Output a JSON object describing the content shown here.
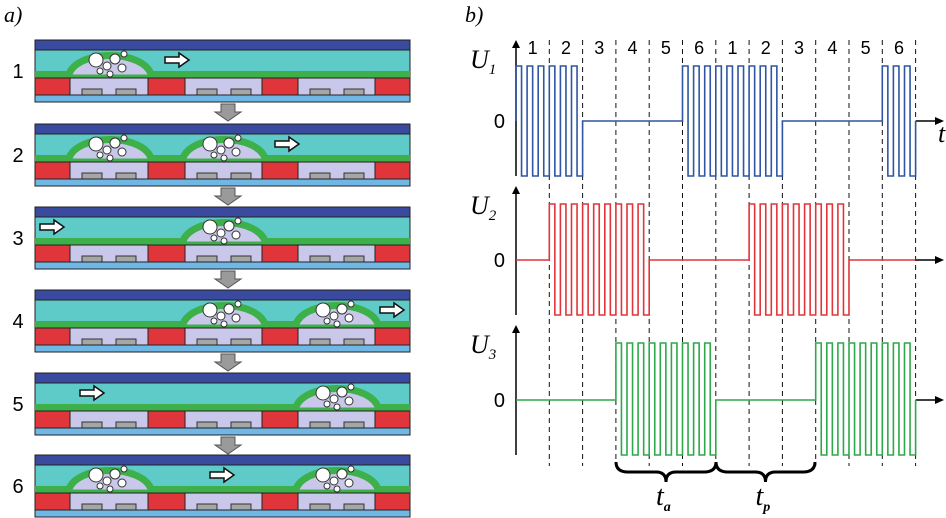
{
  "panel_a": {
    "label": "a)",
    "steps": [
      "1",
      "2",
      "3",
      "4",
      "5",
      "6"
    ]
  },
  "panel_b": {
    "label": "b)",
    "phases": [
      "1",
      "2",
      "3",
      "4",
      "5",
      "6",
      "1",
      "2",
      "3",
      "4",
      "5",
      "6"
    ],
    "signals": [
      {
        "name": "U",
        "subscript": "1",
        "zero": "0"
      },
      {
        "name": "U",
        "subscript": "2",
        "zero": "0"
      },
      {
        "name": "U",
        "subscript": "3",
        "zero": "0"
      }
    ],
    "time_axis": "t",
    "intervals": [
      {
        "name": "t",
        "subscript": "a"
      },
      {
        "name": "t",
        "subscript": "p"
      }
    ]
  }
}
